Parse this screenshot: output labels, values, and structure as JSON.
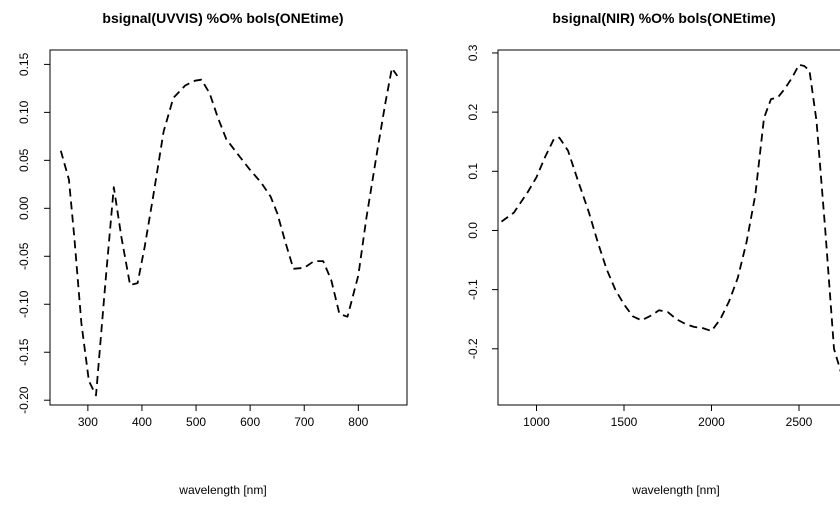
{
  "chart_data": [
    {
      "type": "line",
      "title": "bsignal(UVVIS) %O% bols(ONEtime)",
      "xlabel": "wavelength [nm]",
      "ylabel": "",
      "xlim": [
        230,
        890
      ],
      "ylim": [
        -0.205,
        0.165
      ],
      "xticks": [
        300,
        400,
        500,
        600,
        700,
        800,
        900
      ],
      "yticks": [
        -0.2,
        -0.15,
        -0.1,
        -0.05,
        0.0,
        0.05,
        0.1,
        0.15
      ],
      "ytick_labels": [
        "-0.20",
        "-0.15",
        "-0.10",
        "-0.05",
        "0.00",
        "0.05",
        "0.10",
        "0.15"
      ],
      "line_style": "dashed",
      "series": [
        {
          "x": [
            250,
            265,
            275,
            288,
            302,
            315,
            332,
            348,
            362,
            378,
            392,
            405,
            420,
            440,
            458,
            480,
            498,
            510,
            525,
            540,
            556,
            575,
            600,
            620,
            638,
            650,
            665,
            680,
            700,
            718,
            735,
            750,
            765,
            780,
            800,
            815,
            835,
            850,
            862,
            872
          ],
          "y": [
            0.06,
            0.03,
            -0.03,
            -0.12,
            -0.18,
            -0.195,
            -0.08,
            0.022,
            -0.03,
            -0.08,
            -0.078,
            -0.04,
            0.01,
            0.08,
            0.115,
            0.128,
            0.133,
            0.134,
            0.12,
            0.095,
            0.072,
            0.058,
            0.04,
            0.027,
            0.012,
            -0.005,
            -0.035,
            -0.063,
            -0.062,
            -0.055,
            -0.055,
            -0.075,
            -0.11,
            -0.113,
            -0.07,
            -0.01,
            0.06,
            0.11,
            0.146,
            0.138
          ]
        }
      ]
    },
    {
      "type": "line",
      "title": "bsignal(NIR) %O% bols(ONEtime)",
      "xlabel": "wavelength [nm]",
      "ylabel": "",
      "xlim": [
        780,
        2820
      ],
      "ylim": [
        -0.295,
        0.305
      ],
      "xticks": [
        1000,
        1500,
        2000,
        2500
      ],
      "yticks": [
        -0.2,
        -0.1,
        0.0,
        0.1,
        0.2,
        0.3
      ],
      "ytick_labels": [
        "-0.2",
        "-0.1",
        "0.0",
        "0.1",
        "0.2",
        "0.3"
      ],
      "line_style": "dashed",
      "series": [
        {
          "x": [
            800,
            870,
            950,
            1000,
            1050,
            1100,
            1130,
            1180,
            1230,
            1300,
            1350,
            1400,
            1450,
            1500,
            1550,
            1600,
            1660,
            1700,
            1750,
            1800,
            1850,
            1900,
            1950,
            2000,
            2050,
            2100,
            2150,
            2200,
            2250,
            2300,
            2340,
            2380,
            2420,
            2460,
            2500,
            2530,
            2560,
            2600,
            2650,
            2700,
            2750,
            2800
          ],
          "y": [
            0.015,
            0.03,
            0.065,
            0.09,
            0.125,
            0.155,
            0.157,
            0.135,
            0.09,
            0.03,
            -0.02,
            -0.065,
            -0.1,
            -0.125,
            -0.145,
            -0.152,
            -0.143,
            -0.135,
            -0.138,
            -0.15,
            -0.158,
            -0.163,
            -0.165,
            -0.17,
            -0.15,
            -0.12,
            -0.08,
            -0.02,
            0.06,
            0.19,
            0.222,
            0.225,
            0.24,
            0.258,
            0.28,
            0.278,
            0.27,
            0.185,
            0.0,
            -0.2,
            -0.25,
            -0.27
          ]
        }
      ]
    }
  ]
}
